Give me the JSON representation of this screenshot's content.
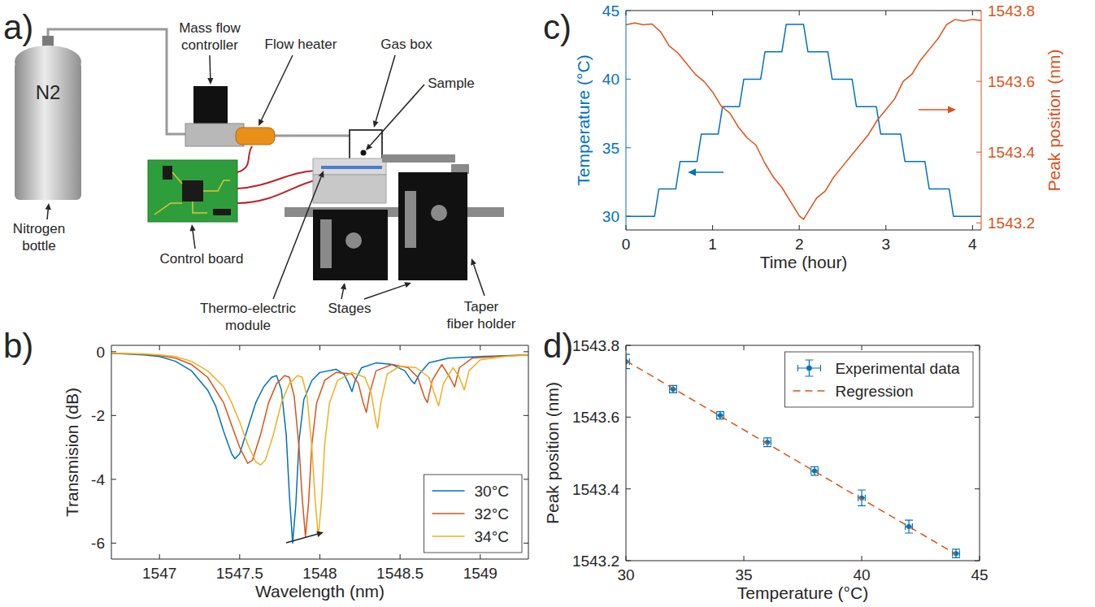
{
  "diagram": {
    "panel": "a)",
    "bottle_text": "N2",
    "labels": {
      "mass_flow_controller": [
        "Mass flow",
        "controller"
      ],
      "flow_heater": [
        "Flow heater"
      ],
      "gas_box": [
        "Gas box"
      ],
      "sample": [
        "Sample"
      ],
      "nitrogen_bottle": [
        "Nitrogen",
        "bottle"
      ],
      "control_board": [
        "Control board"
      ],
      "thermo_electric_module": [
        "Thermo-electric",
        "module"
      ],
      "stages": [
        "Stages"
      ],
      "taper_fiber_holder": [
        "Taper",
        "fiber holder"
      ]
    }
  },
  "chart_data": [
    {
      "panel": "b)",
      "type": "line",
      "x_label": "Wavelength (nm)",
      "y_label": "Transmision (dB)",
      "xlim": [
        1546.7,
        1549.3
      ],
      "xticks": [
        1547,
        1547.5,
        1548,
        1548.5,
        1549
      ],
      "ylim": [
        -6.5,
        0.2
      ],
      "yticks": [
        -6,
        -4,
        -2,
        0
      ],
      "legend": "southeast",
      "series": [
        {
          "name": "30°C",
          "color": "#0072bd",
          "x": [
            1546.7,
            1546.9,
            1547.0,
            1547.1,
            1547.2,
            1547.3,
            1547.35,
            1547.4,
            1547.45,
            1547.47,
            1547.5,
            1547.55,
            1547.6,
            1547.65,
            1547.7,
            1547.73,
            1547.76,
            1547.79,
            1547.81,
            1547.83,
            1547.85,
            1547.87,
            1547.9,
            1547.95,
            1548.0,
            1548.1,
            1548.15,
            1548.18,
            1548.2,
            1548.22,
            1548.26,
            1548.35,
            1548.45,
            1548.53,
            1548.57,
            1548.59,
            1548.62,
            1548.68,
            1548.8,
            1549.0,
            1549.3
          ],
          "values": [
            -0.05,
            -0.1,
            -0.15,
            -0.3,
            -0.6,
            -1.2,
            -1.7,
            -2.5,
            -3.2,
            -3.35,
            -3.2,
            -2.4,
            -1.6,
            -1.1,
            -0.8,
            -0.75,
            -1.2,
            -2.6,
            -4.5,
            -6.0,
            -4.8,
            -2.8,
            -1.5,
            -0.9,
            -0.65,
            -0.55,
            -0.7,
            -1.0,
            -1.25,
            -0.9,
            -0.5,
            -0.35,
            -0.4,
            -0.6,
            -0.9,
            -1.0,
            -0.7,
            -0.35,
            -0.2,
            -0.15,
            -0.1
          ]
        },
        {
          "name": "32°C",
          "color": "#d95319",
          "x": [
            1546.7,
            1546.9,
            1547.0,
            1547.1,
            1547.2,
            1547.3,
            1547.4,
            1547.45,
            1547.5,
            1547.55,
            1547.58,
            1547.63,
            1547.68,
            1547.73,
            1547.78,
            1547.81,
            1547.84,
            1547.87,
            1547.89,
            1547.91,
            1547.93,
            1547.95,
            1547.98,
            1548.03,
            1548.1,
            1548.2,
            1548.24,
            1548.27,
            1548.29,
            1548.31,
            1548.35,
            1548.45,
            1548.55,
            1548.61,
            1548.65,
            1548.67,
            1548.7,
            1548.76,
            1548.81,
            1548.84,
            1548.87,
            1548.95,
            1549.1,
            1549.3
          ],
          "values": [
            -0.05,
            -0.08,
            -0.12,
            -0.2,
            -0.4,
            -0.8,
            -1.6,
            -2.3,
            -3.0,
            -3.5,
            -3.4,
            -2.6,
            -1.6,
            -1.0,
            -0.75,
            -0.8,
            -1.4,
            -3.0,
            -4.6,
            -5.8,
            -4.7,
            -2.9,
            -1.6,
            -0.9,
            -0.65,
            -0.7,
            -1.0,
            -1.6,
            -1.9,
            -1.3,
            -0.6,
            -0.4,
            -0.5,
            -0.8,
            -1.4,
            -1.6,
            -0.9,
            -0.4,
            -0.8,
            -1.1,
            -0.5,
            -0.2,
            -0.15,
            -0.1
          ]
        },
        {
          "name": "34°C",
          "color": "#edb120",
          "x": [
            1546.7,
            1546.9,
            1547.0,
            1547.1,
            1547.2,
            1547.3,
            1547.4,
            1547.45,
            1547.5,
            1547.55,
            1547.6,
            1547.63,
            1547.66,
            1547.71,
            1547.76,
            1547.81,
            1547.86,
            1547.89,
            1547.92,
            1547.95,
            1547.97,
            1547.99,
            1548.01,
            1548.03,
            1548.06,
            1548.11,
            1548.2,
            1548.28,
            1548.32,
            1548.35,
            1548.36,
            1548.38,
            1548.42,
            1548.5,
            1548.6,
            1548.68,
            1548.72,
            1548.74,
            1548.77,
            1548.83,
            1548.87,
            1548.9,
            1548.93,
            1549.0,
            1549.15,
            1549.3
          ],
          "values": [
            -0.05,
            -0.07,
            -0.1,
            -0.15,
            -0.3,
            -0.6,
            -1.1,
            -1.6,
            -2.2,
            -2.9,
            -3.45,
            -3.55,
            -3.4,
            -2.6,
            -1.6,
            -1.0,
            -0.75,
            -0.8,
            -1.4,
            -3.0,
            -4.6,
            -5.8,
            -4.7,
            -2.9,
            -1.6,
            -0.9,
            -0.65,
            -0.8,
            -1.3,
            -2.2,
            -2.4,
            -1.6,
            -0.7,
            -0.45,
            -0.5,
            -0.8,
            -1.4,
            -1.7,
            -1.0,
            -0.5,
            -0.8,
            -1.2,
            -0.6,
            -0.25,
            -0.15,
            -0.1
          ]
        }
      ]
    },
    {
      "panel": "c)",
      "type": "line",
      "x_label": "Time (hour)",
      "y_label": "Temperature (°C)",
      "y2_label": "Peak position (nm)",
      "xlim": [
        0,
        4.1
      ],
      "xticks": [
        0,
        1,
        2,
        3,
        4
      ],
      "ylim": [
        29,
        45
      ],
      "yticks": [
        30,
        35,
        40,
        45
      ],
      "y2lim": [
        1543.18,
        1543.8
      ],
      "y2ticks": [
        1543.2,
        1543.4,
        1543.6,
        1543.8
      ],
      "series": [
        {
          "color": "#0072bd",
          "x": [
            0,
            0.33,
            0.38,
            0.575,
            0.625,
            0.82,
            0.87,
            1.065,
            1.115,
            1.31,
            1.36,
            1.555,
            1.605,
            1.8,
            1.85,
            2.05,
            2.1,
            2.33,
            2.38,
            2.61,
            2.66,
            2.89,
            2.94,
            3.17,
            3.22,
            3.45,
            3.5,
            3.73,
            3.78,
            4.1
          ],
          "values": [
            30,
            30,
            32,
            32,
            34,
            34,
            36,
            36,
            38,
            38,
            40,
            40,
            42,
            42,
            44,
            44,
            42,
            42,
            40,
            40,
            38,
            38,
            36,
            36,
            34,
            34,
            32,
            32,
            30,
            30
          ]
        },
        {
          "color": "#d95319",
          "axis": "y2",
          "x": [
            0,
            0.1,
            0.2,
            0.3,
            0.4,
            0.5,
            0.6,
            0.7,
            0.8,
            0.9,
            1.0,
            1.1,
            1.2,
            1.3,
            1.4,
            1.5,
            1.6,
            1.7,
            1.8,
            1.9,
            2.0,
            2.05,
            2.1,
            2.2,
            2.3,
            2.4,
            2.5,
            2.6,
            2.7,
            2.8,
            2.9,
            3.0,
            3.1,
            3.2,
            3.3,
            3.4,
            3.5,
            3.6,
            3.7,
            3.8,
            3.9,
            4.0,
            4.1
          ],
          "values": [
            1543.76,
            1543.765,
            1543.76,
            1543.762,
            1543.74,
            1543.7,
            1543.68,
            1543.65,
            1543.62,
            1543.6,
            1543.57,
            1543.53,
            1543.51,
            1543.47,
            1543.44,
            1543.42,
            1543.37,
            1543.33,
            1543.3,
            1543.26,
            1543.22,
            1543.21,
            1543.23,
            1543.27,
            1543.29,
            1543.33,
            1543.36,
            1543.39,
            1543.42,
            1543.45,
            1543.49,
            1543.52,
            1543.55,
            1543.6,
            1543.62,
            1543.66,
            1543.69,
            1543.72,
            1543.76,
            1543.775,
            1543.77,
            1543.775,
            1543.772
          ]
        }
      ]
    },
    {
      "panel": "d)",
      "type": "scatter",
      "x_label": "Temperature (°C)",
      "y_label": "Peak position (nm)",
      "xlim": [
        30,
        45
      ],
      "xticks": [
        30,
        35,
        40,
        45
      ],
      "ylim": [
        1543.2,
        1543.8
      ],
      "yticks": [
        1543.2,
        1543.4,
        1543.6,
        1543.8
      ],
      "legend": "northeast",
      "series": [
        {
          "name": "Experimental data",
          "type": "scatter",
          "marker": "dot",
          "color": "#0072bd",
          "x": [
            30,
            32,
            34,
            36,
            38,
            40,
            42,
            44
          ],
          "values": [
            1543.755,
            1543.678,
            1543.605,
            1543.53,
            1543.45,
            1543.375,
            1543.295,
            1543.22
          ],
          "errors": [
            0.02,
            0.01,
            0.01,
            0.012,
            0.012,
            0.022,
            0.018,
            0.012
          ],
          "x_errors": [
            0.15,
            0.15,
            0.15,
            0.15,
            0.15,
            0.15,
            0.15,
            0.15
          ]
        },
        {
          "name": "Regression",
          "type": "line",
          "line_style": "dashed",
          "color": "#d95319",
          "x": [
            30,
            44
          ],
          "values": [
            1543.757,
            1543.218
          ]
        }
      ]
    }
  ]
}
